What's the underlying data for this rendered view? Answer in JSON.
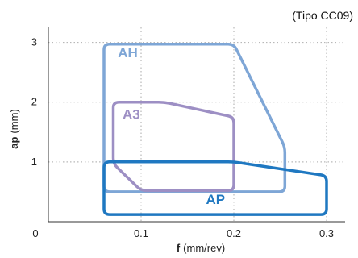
{
  "chart_data": {
    "type": "area",
    "title": "",
    "note": "(Tipo CC09)",
    "x_axis": {
      "label_main": "f",
      "label_unit": "(mm/rev)",
      "range": [
        0,
        0.32
      ],
      "ticks": [
        {
          "value": 0,
          "label": "0"
        },
        {
          "value": 0.1,
          "label": "0.1"
        },
        {
          "value": 0.2,
          "label": "0.2"
        },
        {
          "value": 0.3,
          "label": "0.3"
        }
      ]
    },
    "y_axis": {
      "label_main": "ap",
      "label_unit": "(mm)",
      "range": [
        0,
        3.25
      ],
      "ticks": [
        {
          "value": 1,
          "label": "1"
        },
        {
          "value": 2,
          "label": "2"
        },
        {
          "value": 3,
          "label": "3"
        }
      ]
    },
    "grid": {
      "style": "dotted",
      "x_lines": [
        0.1,
        0.2,
        0.3
      ],
      "y_lines": [
        1,
        2,
        3
      ]
    },
    "series": [
      {
        "name": "AH",
        "color": "#7ea6d6",
        "label_pos": {
          "f": 0.075,
          "ap": 2.75
        },
        "polygon": [
          [
            0.06,
            2.97
          ],
          [
            0.2,
            2.97
          ],
          [
            0.255,
            1.25
          ],
          [
            0.255,
            0.5
          ],
          [
            0.06,
            0.5
          ]
        ]
      },
      {
        "name": "A3",
        "color": "#9d8fc4",
        "label_pos": {
          "f": 0.08,
          "ap": 1.72
        },
        "polygon": [
          [
            0.07,
            2.0
          ],
          [
            0.125,
            2.0
          ],
          [
            0.2,
            1.75
          ],
          [
            0.2,
            0.52
          ],
          [
            0.1,
            0.52
          ],
          [
            0.07,
            0.97
          ]
        ]
      },
      {
        "name": "AP",
        "color": "#1f78c1",
        "label_pos": {
          "f": 0.17,
          "ap": 0.3
        },
        "polygon": [
          [
            0.06,
            1.0
          ],
          [
            0.2,
            1.0
          ],
          [
            0.3,
            0.77
          ],
          [
            0.3,
            0.12
          ],
          [
            0.06,
            0.12
          ]
        ]
      }
    ]
  }
}
